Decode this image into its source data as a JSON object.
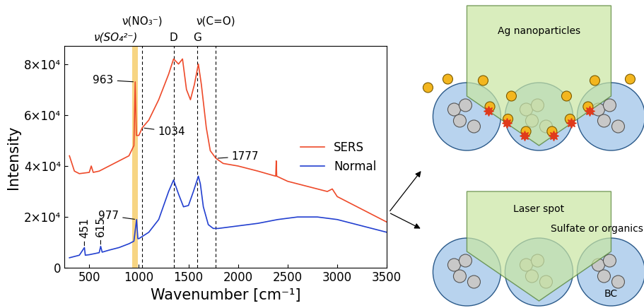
{
  "chart_data": {
    "type": "line",
    "x_label": "Wavenumber [cm⁻¹]",
    "y_label": "Intensity",
    "xlim": [
      250,
      3500
    ],
    "xticks": [
      500,
      1000,
      1500,
      2000,
      2500,
      3000,
      3500
    ],
    "ylim": [
      0,
      87000
    ],
    "yticks": [
      0,
      {
        "value": 20000,
        "label": "2×10⁴"
      },
      {
        "value": 40000,
        "label": "4×10⁴"
      },
      {
        "value": 60000,
        "label": "6×10⁴"
      },
      {
        "value": 80000,
        "label": "8×10⁴"
      }
    ],
    "legend": "center right",
    "series": [
      {
        "name": "SERS",
        "color": "#ee4a2a",
        "x": [
          300,
          350,
          400,
          500,
          520,
          540,
          600,
          700,
          800,
          900,
          950,
          963,
          975,
          1000,
          1034,
          1100,
          1200,
          1300,
          1350,
          1400,
          1440,
          1480,
          1520,
          1560,
          1600,
          1630,
          1680,
          1720,
          1777,
          1850,
          2000,
          2200,
          2380,
          2385,
          2390,
          2500,
          2700,
          2900,
          2950,
          3000,
          3200,
          3400,
          3500
        ],
        "values": [
          44000,
          38000,
          37000,
          37500,
          40000,
          37500,
          38000,
          40000,
          42000,
          44000,
          48000,
          73000,
          52000,
          52000,
          55000,
          58000,
          66000,
          76000,
          82000,
          80000,
          82000,
          70000,
          66000,
          72000,
          80000,
          72000,
          55000,
          46000,
          43000,
          41000,
          40000,
          38000,
          36000,
          42000,
          36000,
          34000,
          32000,
          30000,
          31000,
          28000,
          24000,
          20000,
          18000
        ]
      },
      {
        "name": "Normal",
        "color": "#2340d0",
        "x": [
          300,
          400,
          451,
          460,
          500,
          600,
          615,
          630,
          700,
          800,
          900,
          950,
          977,
          990,
          1000,
          1100,
          1200,
          1300,
          1350,
          1400,
          1450,
          1500,
          1550,
          1600,
          1620,
          1650,
          1700,
          1750,
          1800,
          2000,
          2200,
          2400,
          2600,
          2800,
          3000,
          3200,
          3400,
          3500
        ],
        "values": [
          4000,
          5000,
          8000,
          5000,
          5200,
          6000,
          8500,
          6200,
          7000,
          8000,
          9500,
          10500,
          19000,
          11500,
          11500,
          14000,
          19000,
          30000,
          34500,
          29000,
          24000,
          24500,
          30000,
          36000,
          33000,
          24000,
          17000,
          15500,
          15500,
          16500,
          17500,
          19000,
          20000,
          20000,
          19000,
          17000,
          15000,
          14000
        ]
      }
    ],
    "band": {
      "x": [
        930,
        990
      ],
      "label": "ν(SO₄²⁻)",
      "color": "#f5c85a"
    },
    "vlines": [
      {
        "x": 1034,
        "label": "ν(NO₃⁻)"
      },
      {
        "x": 1350,
        "label": "D"
      },
      {
        "x": 1590,
        "label": "G"
      },
      {
        "x": 1777,
        "label": "ν(C=O)"
      }
    ],
    "annotations": [
      {
        "text": "963",
        "x": 963,
        "y": 73000
      },
      {
        "text": "1034",
        "x": 1034,
        "y": 55000
      },
      {
        "text": "1777",
        "x": 1777,
        "y": 43000
      },
      {
        "text": "977",
        "x": 977,
        "y": 19000
      },
      {
        "text": "451",
        "x": 451,
        "y": 8000
      },
      {
        "text": "615",
        "x": 615,
        "y": 8500
      }
    ]
  },
  "diagram": {
    "panels": [
      {
        "labels": [
          "Ag nanoparticles"
        ]
      },
      {
        "labels": [
          "Laser spot",
          "Sulfate or organics",
          "BC"
        ]
      }
    ]
  }
}
